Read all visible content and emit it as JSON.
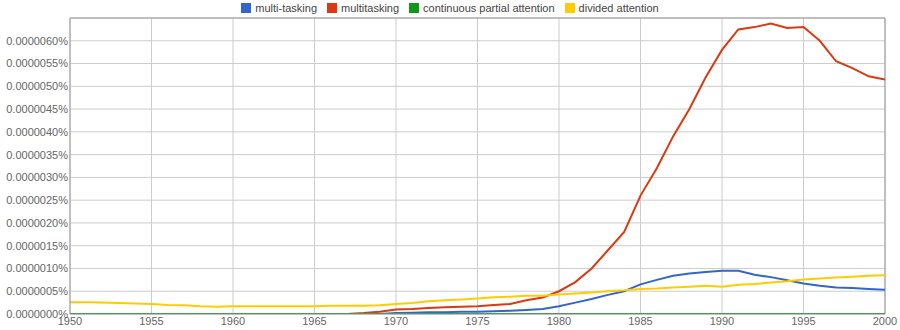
{
  "chart_data": {
    "type": "line",
    "grid": true,
    "legend": "top",
    "x": [
      1950,
      1951,
      1952,
      1953,
      1954,
      1955,
      1956,
      1957,
      1958,
      1959,
      1960,
      1961,
      1962,
      1963,
      1964,
      1965,
      1966,
      1967,
      1968,
      1969,
      1970,
      1971,
      1972,
      1973,
      1974,
      1975,
      1976,
      1977,
      1978,
      1979,
      1980,
      1981,
      1982,
      1983,
      1984,
      1985,
      1986,
      1987,
      1988,
      1989,
      1990,
      1991,
      1992,
      1993,
      1994,
      1995,
      1996,
      1997,
      1998,
      1999,
      2000
    ],
    "xlim": [
      1950,
      2000
    ],
    "xticks": [
      1950,
      1955,
      1960,
      1965,
      1970,
      1975,
      1980,
      1985,
      1990,
      1995,
      2000
    ],
    "ylim": [
      0,
      6.5e-06
    ],
    "yticks": [
      {
        "value": 0,
        "label": "0.0000000%"
      },
      {
        "value": 5e-07,
        "label": "0.0000005%"
      },
      {
        "value": 1e-06,
        "label": "0.0000010%"
      },
      {
        "value": 1.5e-06,
        "label": "0.0000015%"
      },
      {
        "value": 2e-06,
        "label": "0.0000020%"
      },
      {
        "value": 2.5e-06,
        "label": "0.0000025%"
      },
      {
        "value": 3e-06,
        "label": "0.0000030%"
      },
      {
        "value": 3.5e-06,
        "label": "0.0000035%"
      },
      {
        "value": 4e-06,
        "label": "0.0000040%"
      },
      {
        "value": 4.5e-06,
        "label": "0.0000045%"
      },
      {
        "value": 5e-06,
        "label": "0.0000050%"
      },
      {
        "value": 5.5e-06,
        "label": "0.0000055%"
      },
      {
        "value": 6e-06,
        "label": "0.0000060%"
      }
    ],
    "series": [
      {
        "name": "multi-tasking",
        "color": "#3366cc",
        "values": [
          0,
          0,
          0,
          0,
          0,
          0,
          0,
          0,
          0,
          0,
          0,
          0,
          0,
          0,
          0,
          0,
          0,
          0,
          0,
          0,
          2e-08,
          3e-08,
          4e-08,
          4e-08,
          5e-08,
          5e-08,
          6e-08,
          7e-08,
          9e-08,
          1.1e-07,
          1.7e-07,
          2.5e-07,
          3.3e-07,
          4.2e-07,
          5e-07,
          6.5e-07,
          7.5e-07,
          8.4e-07,
          8.9e-07,
          9.2e-07,
          9.5e-07,
          9.5e-07,
          8.6e-07,
          8.1e-07,
          7.4e-07,
          6.7e-07,
          6.2e-07,
          5.8e-07,
          5.7e-07,
          5.5e-07,
          5.3e-07
        ]
      },
      {
        "name": "multitasking",
        "color": "#dc3912",
        "values": [
          0,
          0,
          0,
          0,
          0,
          0,
          0,
          0,
          0,
          0,
          0,
          0,
          0,
          0,
          0,
          0,
          0,
          0,
          2e-08,
          5e-08,
          1e-07,
          1.1e-07,
          1.3e-07,
          1.5e-07,
          1.6e-07,
          1.7e-07,
          2e-07,
          2.2e-07,
          3e-07,
          3.6e-07,
          5e-07,
          7e-07,
          1e-06,
          1.4e-06,
          1.8e-06,
          2.6e-06,
          3.2e-06,
          3.9e-06,
          4.5e-06,
          5.2e-06,
          5.8e-06,
          6.25e-06,
          6.3e-06,
          6.38e-06,
          6.28e-06,
          6.3e-06,
          6e-06,
          5.55e-06,
          5.4e-06,
          5.22e-06,
          5.15e-06
        ]
      },
      {
        "name": "continuous partial attention",
        "color": "#109618",
        "values": [
          0,
          0,
          0,
          0,
          0,
          0,
          0,
          0,
          0,
          0,
          0,
          0,
          0,
          0,
          0,
          0,
          0,
          0,
          0,
          0,
          0,
          0,
          0,
          0,
          0,
          0,
          0,
          0,
          0,
          0,
          0,
          0,
          0,
          0,
          0,
          0,
          0,
          0,
          0,
          0,
          0,
          0,
          0,
          0,
          0,
          0,
          0,
          0,
          0,
          0,
          0
        ]
      },
      {
        "name": "divided attention",
        "color": "#ffcc00",
        "values": [
          2.6e-07,
          2.6e-07,
          2.5e-07,
          2.4e-07,
          2.3e-07,
          2.2e-07,
          2e-07,
          1.9e-07,
          1.7e-07,
          1.6e-07,
          1.7e-07,
          1.7e-07,
          1.7e-07,
          1.7e-07,
          1.7e-07,
          1.7e-07,
          1.8e-07,
          1.8e-07,
          1.8e-07,
          1.9e-07,
          2.2e-07,
          2.4e-07,
          2.8e-07,
          3e-07,
          3.2e-07,
          3.4e-07,
          3.7e-07,
          3.8e-07,
          4e-07,
          4e-07,
          4.3e-07,
          4.5e-07,
          4.7e-07,
          5e-07,
          5.2e-07,
          5.5e-07,
          5.6e-07,
          5.8e-07,
          6e-07,
          6.2e-07,
          6e-07,
          6.4e-07,
          6.6e-07,
          6.9e-07,
          7.2e-07,
          7.6e-07,
          7.8e-07,
          8e-07,
          8.2e-07,
          8.4e-07,
          8.5e-07
        ]
      }
    ]
  }
}
